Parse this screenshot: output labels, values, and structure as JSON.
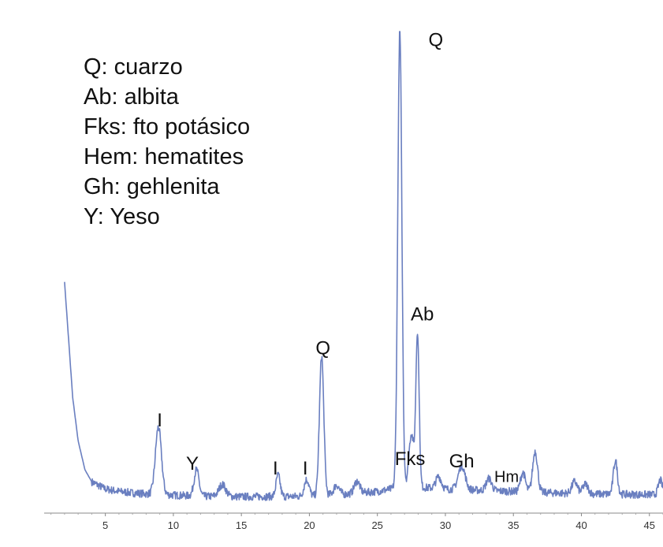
{
  "legend": {
    "items": [
      "Q: cuarzo",
      "Ab: albita",
      "Fks: fto potásico",
      "Hem: hematites",
      "Gh: gehlenita",
      "Y: Yeso"
    ]
  },
  "chart_data": {
    "type": "line",
    "title": "",
    "xlabel": "",
    "ylabel": "",
    "xlim": [
      0.5,
      46
    ],
    "ylim": [
      0,
      100
    ],
    "grid": false,
    "x_ticks": [
      5,
      10,
      15,
      20,
      25,
      30,
      35,
      40,
      45
    ],
    "series_color": "#6a7fc0",
    "baseline_points": [
      [
        2.0,
        48
      ],
      [
        2.3,
        36
      ],
      [
        2.6,
        24
      ],
      [
        3.0,
        15
      ],
      [
        3.5,
        9
      ],
      [
        4.0,
        6.5
      ],
      [
        5.0,
        5
      ],
      [
        6.0,
        4.5
      ],
      [
        7.0,
        4.2
      ],
      [
        8.0,
        4.0
      ],
      [
        9.5,
        3.8
      ],
      [
        12,
        3.5
      ],
      [
        15,
        3.4
      ],
      [
        20,
        3.5
      ],
      [
        23,
        4
      ],
      [
        25,
        4.5
      ],
      [
        26,
        5
      ],
      [
        27.5,
        5.5
      ],
      [
        30,
        5
      ],
      [
        35,
        4.5
      ],
      [
        40,
        4
      ],
      [
        46,
        3.8
      ]
    ],
    "peaks": [
      {
        "x": 8.9,
        "y": 14,
        "w": 0.22,
        "label": "I"
      },
      {
        "x": 11.7,
        "y": 5.5,
        "w": 0.18,
        "label": "Y"
      },
      {
        "x": 13.6,
        "y": 2.5,
        "w": 0.25,
        "label": ""
      },
      {
        "x": 17.7,
        "y": 4.5,
        "w": 0.15,
        "label": "I"
      },
      {
        "x": 19.8,
        "y": 3.5,
        "w": 0.18,
        "label": "I"
      },
      {
        "x": 20.9,
        "y": 29,
        "w": 0.16,
        "label": "Q"
      },
      {
        "x": 22.0,
        "y": 2.0,
        "w": 0.2,
        "label": ""
      },
      {
        "x": 23.5,
        "y": 2.5,
        "w": 0.2,
        "label": ""
      },
      {
        "x": 26.65,
        "y": 95,
        "w": 0.15,
        "label": "Q"
      },
      {
        "x": 27.5,
        "y": 11,
        "w": 0.18,
        "label": "Fks"
      },
      {
        "x": 27.95,
        "y": 32,
        "w": 0.12,
        "label": "Ab"
      },
      {
        "x": 29.5,
        "y": 2.5,
        "w": 0.2,
        "label": ""
      },
      {
        "x": 31.2,
        "y": 5,
        "w": 0.25,
        "label": "Gh"
      },
      {
        "x": 33.2,
        "y": 2.5,
        "w": 0.2,
        "label": "Hm"
      },
      {
        "x": 35.7,
        "y": 4,
        "w": 0.18,
        "label": ""
      },
      {
        "x": 36.6,
        "y": 8.5,
        "w": 0.18,
        "label": ""
      },
      {
        "x": 39.5,
        "y": 2.5,
        "w": 0.2,
        "label": ""
      },
      {
        "x": 40.3,
        "y": 2.0,
        "w": 0.2,
        "label": ""
      },
      {
        "x": 42.5,
        "y": 7,
        "w": 0.15,
        "label": ""
      },
      {
        "x": 45.8,
        "y": 3,
        "w": 0.15,
        "label": ""
      }
    ],
    "annotations": [
      {
        "text": "Q",
        "x": 29.3,
        "y": 97
      },
      {
        "text": "Ab",
        "x": 28.3,
        "y": 40
      },
      {
        "text": "Q",
        "x": 21.0,
        "y": 33
      },
      {
        "text": "I",
        "x": 9.0,
        "y": 18
      },
      {
        "text": "Y",
        "x": 11.4,
        "y": 9
      },
      {
        "text": "I",
        "x": 17.5,
        "y": 8
      },
      {
        "text": "I",
        "x": 19.7,
        "y": 8
      },
      {
        "text": "Fks",
        "x": 27.4,
        "y": 10
      },
      {
        "text": "Gh",
        "x": 31.2,
        "y": 9.5
      },
      {
        "text": "Hm",
        "x": 34.5,
        "y": 6.5
      }
    ]
  }
}
